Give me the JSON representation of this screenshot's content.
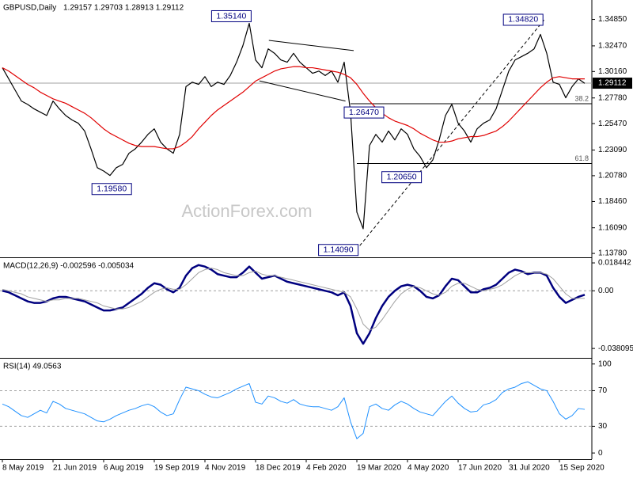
{
  "chart_data": [
    {
      "type": "line",
      "title": "GBPUSD,Daily",
      "subtitle": "1.29157 1.29703 1.28913 1.29112",
      "watermark": "ActionForex.com",
      "categories": [
        "8 May 2019",
        null,
        null,
        null,
        null,
        null,
        null,
        null,
        "21 Jun 2019",
        null,
        null,
        null,
        null,
        null,
        null,
        null,
        "6 Aug 2019",
        null,
        null,
        null,
        null,
        null,
        null,
        null,
        "19 Sep 2019",
        null,
        null,
        null,
        null,
        null,
        null,
        null,
        "4 Nov 2019",
        null,
        null,
        null,
        null,
        null,
        null,
        null,
        "18 Dec 2019",
        null,
        null,
        null,
        null,
        null,
        null,
        null,
        "4 Feb 2020",
        null,
        null,
        null,
        null,
        null,
        null,
        null,
        "19 Mar 2020",
        null,
        null,
        null,
        null,
        null,
        null,
        null,
        "4 May 2020",
        null,
        null,
        null,
        null,
        null,
        null,
        null,
        "17 Jun 2020",
        null,
        null,
        null,
        null,
        null,
        null,
        null,
        "31 Jul 2020",
        null,
        null,
        null,
        null,
        null,
        null,
        null,
        "15 Sep 2020",
        null,
        null,
        null,
        null
      ],
      "series": [
        {
          "color": "#000000",
          "values": [
            1.305,
            1.295,
            1.285,
            1.275,
            1.272,
            1.268,
            1.265,
            1.262,
            1.275,
            1.268,
            1.262,
            1.258,
            1.255,
            1.248,
            1.232,
            1.215,
            1.212,
            1.208,
            1.215,
            1.218,
            1.228,
            1.232,
            1.238,
            1.245,
            1.25,
            1.238,
            1.232,
            1.228,
            1.245,
            1.288,
            1.292,
            1.29,
            1.297,
            1.288,
            1.292,
            1.29,
            1.298,
            1.31,
            1.325,
            1.345,
            1.312,
            1.305,
            1.322,
            1.318,
            1.312,
            1.31,
            1.318,
            1.31,
            1.305,
            1.3,
            1.302,
            1.298,
            1.302,
            1.292,
            1.31,
            1.265,
            1.175,
            1.16,
            1.235,
            1.245,
            1.238,
            1.248,
            1.24,
            1.25,
            1.245,
            1.232,
            1.225,
            1.215,
            1.222,
            1.24,
            1.262,
            1.272,
            1.255,
            1.248,
            1.238,
            1.25,
            1.255,
            1.258,
            1.268,
            1.285,
            1.302,
            1.312,
            1.315,
            1.318,
            1.322,
            1.335,
            1.318,
            1.292,
            1.29,
            1.278,
            1.288,
            1.295,
            1.291
          ]
        },
        {
          "color": "#e00000",
          "values": [
            1.305,
            1.302,
            1.298,
            1.294,
            1.29,
            1.287,
            1.283,
            1.28,
            1.277,
            1.275,
            1.273,
            1.27,
            1.267,
            1.264,
            1.26,
            1.255,
            1.25,
            1.246,
            1.243,
            1.24,
            1.237,
            1.235,
            1.234,
            1.234,
            1.234,
            1.233,
            1.232,
            1.232,
            1.234,
            1.238,
            1.243,
            1.25,
            1.256,
            1.262,
            1.267,
            1.271,
            1.275,
            1.279,
            1.283,
            1.288,
            1.293,
            1.296,
            1.299,
            1.302,
            1.304,
            1.305,
            1.306,
            1.306,
            1.305,
            1.305,
            1.304,
            1.303,
            1.302,
            1.301,
            1.299,
            1.296,
            1.29,
            1.282,
            1.275,
            1.269,
            1.264,
            1.26,
            1.257,
            1.255,
            1.253,
            1.25,
            1.246,
            1.243,
            1.24,
            1.238,
            1.238,
            1.239,
            1.241,
            1.242,
            1.243,
            1.243,
            1.244,
            1.246,
            1.248,
            1.252,
            1.257,
            1.263,
            1.269,
            1.275,
            1.281,
            1.287,
            1.292,
            1.296,
            1.297,
            1.296,
            1.295,
            1.295,
            1.295
          ]
        }
      ],
      "ylim": [
        1.1343,
        1.366
      ],
      "yticks": [
        {
          "value": 1.3485,
          "label": "1.34850"
        },
        {
          "value": 1.3247,
          "label": "1.32470"
        },
        {
          "value": 1.3016,
          "label": "1.30160"
        },
        {
          "value": 1.2778,
          "label": "1.27780"
        },
        {
          "value": 1.2547,
          "label": "1.25470"
        },
        {
          "value": 1.2309,
          "label": "1.23090"
        },
        {
          "value": 1.2078,
          "label": "1.20780"
        },
        {
          "value": 1.1846,
          "label": "1.18460"
        },
        {
          "value": 1.1609,
          "label": "1.16090"
        },
        {
          "value": 1.1378,
          "label": "1.13780"
        }
      ],
      "grid": false,
      "last_price": {
        "value": 1.29112,
        "label": "1.29112"
      },
      "levels": [
        {
          "label": "38.2",
          "value": 1.2726,
          "from": 55
        },
        {
          "label": "61.8",
          "value": 1.2188,
          "from": 56
        }
      ],
      "trendlines": [
        {
          "x": [
            42.1,
            55.5
          ],
          "y": [
            1.3296,
            1.3205
          ],
          "dash": false
        },
        {
          "x": [
            40.6,
            54.2
          ],
          "y": [
            1.2932,
            1.275
          ],
          "dash": false
        },
        {
          "x": [
            55.9,
            85.6
          ],
          "y": [
            1.1409,
            1.3482
          ],
          "dash": true
        }
      ],
      "annotations": [
        {
          "label": "1.35140",
          "value": 1.3514,
          "x": 39.3,
          "side": "left"
        },
        {
          "label": "1.19580",
          "value": 1.1958,
          "x": 20.4,
          "side": "left"
        },
        {
          "label": "1.26470",
          "value": 1.2647,
          "x": 54,
          "side": "right"
        },
        {
          "label": "1.14090",
          "value": 1.1409,
          "x": 56.2,
          "side": "left"
        },
        {
          "label": "1.20650",
          "value": 1.2065,
          "x": 66.2,
          "side": "left"
        },
        {
          "label": "1.34820",
          "value": 1.3482,
          "x": 85.4,
          "side": "left"
        }
      ]
    },
    {
      "type": "line",
      "title": "MACD(12,26,9) -0.002596 -0.005034",
      "series": [
        {
          "color": "#00007f",
          "width": 2.5,
          "values": [
            0.0,
            -0.001,
            -0.003,
            -0.005,
            -0.007,
            -0.008,
            -0.008,
            -0.007,
            -0.005,
            -0.004,
            -0.004,
            -0.005,
            -0.006,
            -0.007,
            -0.009,
            -0.011,
            -0.013,
            -0.013,
            -0.012,
            -0.011,
            -0.008,
            -0.005,
            -0.002,
            0.002,
            0.005,
            0.004,
            0.001,
            -0.001,
            0.002,
            0.01,
            0.015,
            0.017,
            0.016,
            0.014,
            0.011,
            0.01,
            0.009,
            0.009,
            0.012,
            0.016,
            0.012,
            0.008,
            0.009,
            0.01,
            0.008,
            0.006,
            0.005,
            0.004,
            0.003,
            0.002,
            0.001,
            0.0,
            -0.001,
            -0.003,
            -0.001,
            -0.01,
            -0.028,
            -0.035,
            -0.028,
            -0.018,
            -0.01,
            -0.004,
            0.0,
            0.003,
            0.004,
            0.003,
            0.0,
            -0.004,
            -0.005,
            -0.003,
            0.003,
            0.008,
            0.007,
            0.003,
            -0.001,
            -0.001,
            0.001,
            0.002,
            0.004,
            0.008,
            0.012,
            0.014,
            0.013,
            0.011,
            0.012,
            0.012,
            0.01,
            0.002,
            -0.004,
            -0.008,
            -0.006,
            -0.004,
            -0.0026
          ]
        },
        {
          "color": "#a0a0a0",
          "width": 1,
          "values": [
            0.001,
            0.0,
            -0.001,
            -0.002,
            -0.004,
            -0.005,
            -0.006,
            -0.007,
            -0.006,
            -0.006,
            -0.005,
            -0.005,
            -0.005,
            -0.006,
            -0.007,
            -0.008,
            -0.01,
            -0.011,
            -0.012,
            -0.012,
            -0.011,
            -0.009,
            -0.007,
            -0.004,
            -0.001,
            0.001,
            0.002,
            0.001,
            0.001,
            0.004,
            0.008,
            0.012,
            0.014,
            0.015,
            0.014,
            0.012,
            0.011,
            0.01,
            0.01,
            0.012,
            0.013,
            0.011,
            0.01,
            0.01,
            0.009,
            0.008,
            0.007,
            0.006,
            0.005,
            0.004,
            0.003,
            0.002,
            0.001,
            0.0,
            -0.001,
            -0.004,
            -0.012,
            -0.022,
            -0.026,
            -0.024,
            -0.019,
            -0.013,
            -0.007,
            -0.002,
            0.001,
            0.003,
            0.002,
            0.0,
            -0.002,
            -0.003,
            -0.001,
            0.003,
            0.005,
            0.005,
            0.003,
            0.001,
            0.0,
            0.001,
            0.002,
            0.004,
            0.007,
            0.01,
            0.012,
            0.012,
            0.012,
            0.012,
            0.011,
            0.008,
            0.003,
            -0.002,
            -0.005,
            -0.005,
            -0.005
          ]
        }
      ],
      "ylim": [
        -0.0443,
        0.0216
      ],
      "yticks": [
        0.018442,
        {
          "value": 0,
          "label": "0.00"
        },
        -0.038095
      ],
      "grid": true
    },
    {
      "type": "line",
      "title": "RSI(14) 49.0563",
      "series": [
        {
          "color": "#1e90ff",
          "width": 1,
          "values": [
            55,
            52,
            47,
            42,
            40,
            44,
            48,
            45,
            58,
            55,
            50,
            48,
            46,
            44,
            40,
            36,
            35,
            38,
            42,
            45,
            48,
            50,
            53,
            55,
            52,
            46,
            42,
            44,
            60,
            74,
            72,
            70,
            66,
            63,
            62,
            65,
            68,
            72,
            75,
            78,
            57,
            55,
            64,
            62,
            58,
            56,
            60,
            55,
            53,
            52,
            52,
            50,
            48,
            52,
            62,
            35,
            16,
            22,
            52,
            55,
            50,
            48,
            54,
            58,
            55,
            50,
            46,
            44,
            42,
            50,
            58,
            64,
            56,
            50,
            46,
            47,
            54,
            56,
            60,
            68,
            72,
            74,
            78,
            80,
            76,
            72,
            70,
            58,
            44,
            38,
            42,
            50,
            49
          ]
        }
      ],
      "ylim": [
        -7,
        106
      ],
      "yticks": [
        100,
        70,
        30,
        0
      ],
      "grid": true
    }
  ]
}
